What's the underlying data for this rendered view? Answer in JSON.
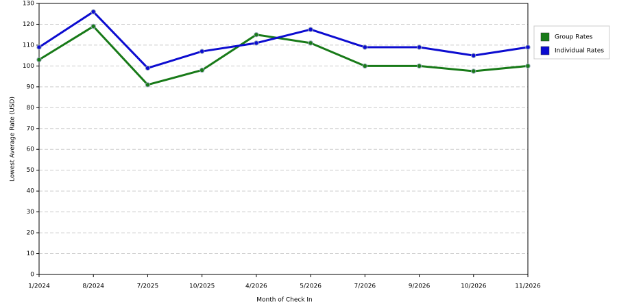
{
  "chart_data": {
    "type": "line",
    "x_label": "Month of Check In",
    "y_label": "Lowest Average Rate (USD)",
    "categories": [
      "1/2024",
      "8/2024",
      "7/2025",
      "10/2025",
      "4/2026",
      "5/2026",
      "7/2026",
      "9/2026",
      "10/2026",
      "11/2026"
    ],
    "series": [
      {
        "name": "Group Rates",
        "color": "#187a18",
        "values": [
          103,
          119,
          91,
          98,
          115,
          111,
          100,
          100,
          97.5,
          100
        ]
      },
      {
        "name": "Individual Rates",
        "color": "#0c0cd0",
        "values": [
          109,
          126,
          99,
          107,
          111,
          117.5,
          109,
          109,
          105,
          109
        ]
      }
    ],
    "ylim": [
      0,
      130
    ],
    "yticks": [
      0,
      10,
      20,
      30,
      40,
      50,
      60,
      70,
      80,
      90,
      100,
      110,
      120,
      130
    ],
    "grid": true,
    "legend": "right"
  }
}
